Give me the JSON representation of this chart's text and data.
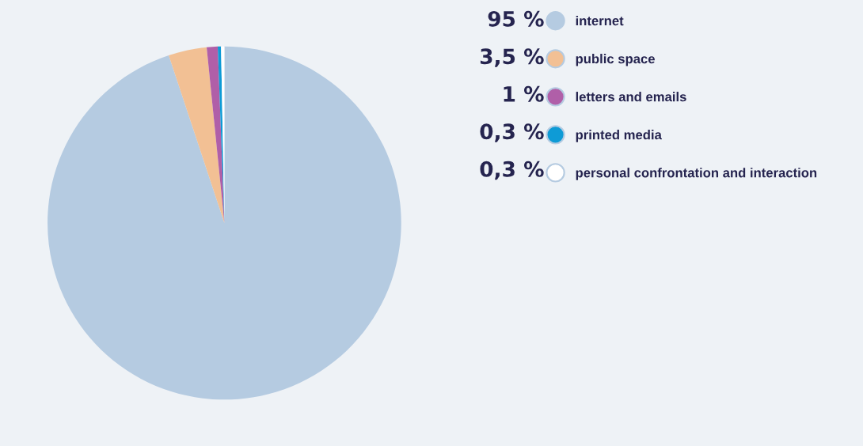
{
  "chart_data": {
    "type": "pie",
    "categories": [
      "internet",
      "public space",
      "letters and emails",
      "printed media",
      "personal confrontation and interaction"
    ],
    "values": [
      95,
      3.5,
      1,
      0.3,
      0.3
    ],
    "value_labels": [
      "95 %",
      "3,5 %",
      "1 %",
      "0,3 %",
      "0,3 %"
    ],
    "colors": [
      "#b5cbe1",
      "#f2c094",
      "#b05fa8",
      "#0e9bd6",
      "#ffffff"
    ],
    "legend": "right"
  }
}
